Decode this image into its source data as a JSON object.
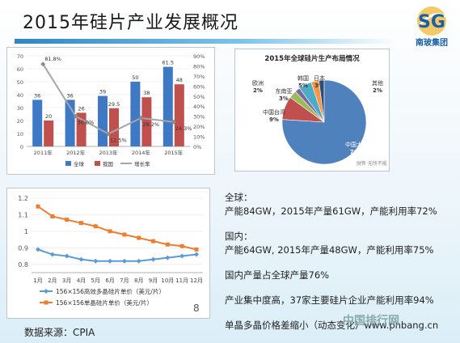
{
  "title": "2015年硅片产业发展概况",
  "logo": {
    "letters": "SG",
    "name": "南玻集团"
  },
  "chart_data": [
    {
      "type": "bar",
      "title": "",
      "categories": [
        "2011年",
        "2012年",
        "2013年",
        "2014年",
        "2015年"
      ],
      "series": [
        {
          "name": "全球",
          "values": [
            36,
            36,
            39,
            50,
            61.5
          ],
          "labels": [
            "36",
            "36",
            "39",
            "50",
            "61.5"
          ],
          "color": "#3f78c4"
        },
        {
          "name": "我国",
          "values": [
            20,
            26,
            29.5,
            38,
            48
          ],
          "labels": [
            "20",
            "26",
            "29.5",
            "38",
            "48"
          ],
          "color": "#c0504d"
        },
        {
          "name": "增长率",
          "values": [
            81.8,
            30.0,
            12.5,
            28.2,
            24.3
          ],
          "labels": [
            "81.8%",
            "30.0%",
            "12.5%",
            "28.2%",
            "24.3%"
          ],
          "color": "#a6a6a6",
          "axis": "right"
        }
      ],
      "ylim": [
        0,
        70
      ],
      "yticks": [
        "0",
        "10",
        "20",
        "30",
        "40",
        "50",
        "60",
        "70"
      ],
      "y2lim": [
        0,
        90
      ],
      "y2ticks": [
        "0%",
        "10%",
        "20%",
        "30%",
        "40%",
        "50%",
        "60%",
        "70%",
        "80%",
        "90%"
      ],
      "legend": "bottom"
    },
    {
      "type": "pie",
      "title": "2015年全球硅片生产布局情况",
      "slices": [
        {
          "name": "中国大陆",
          "value": 76,
          "label": "76%",
          "color": "#4f81bd"
        },
        {
          "name": "中国台湾",
          "value": 9,
          "label": "9%",
          "color": "#c0504d"
        },
        {
          "name": "东南亚",
          "value": 3,
          "label": "3%",
          "color": "#9bbb59"
        },
        {
          "name": "欧洲",
          "value": 2,
          "label": "2%",
          "color": "#8064a2"
        },
        {
          "name": "韩国",
          "value": 5,
          "label": "5%",
          "color": "#4bacc6"
        },
        {
          "name": "日本",
          "value": 3,
          "label": "3%",
          "color": "#f79646"
        },
        {
          "name": "其他",
          "value": 2,
          "label": "2%",
          "color": "#2c4d75"
        }
      ],
      "watermark": "财新·无所不能"
    },
    {
      "type": "line",
      "title": "",
      "categories": [
        "1月",
        "2月",
        "3月",
        "4月",
        "5月",
        "6月",
        "7月",
        "8月",
        "9月",
        "10月",
        "11月",
        "12月"
      ],
      "series": [
        {
          "name": "156×156高效多晶硅片单价（美元/片）",
          "values": [
            0.89,
            0.86,
            0.85,
            0.83,
            0.82,
            0.82,
            0.82,
            0.82,
            0.83,
            0.84,
            0.85,
            0.86
          ],
          "color": "#5b9bd5"
        },
        {
          "name": "156×156单晶硅片单价（美元/片）",
          "values": [
            1.15,
            1.09,
            1.07,
            1.05,
            1.03,
            1.0,
            0.98,
            0.96,
            0.94,
            0.92,
            0.91,
            0.89
          ],
          "color": "#ed7d31"
        }
      ],
      "ylim": [
        0.75,
        1.2
      ],
      "yticks": [
        "0.8",
        "0.9",
        "1",
        "1.1",
        "1.2"
      ],
      "legend": "bottom",
      "page_number": "8"
    }
  ],
  "stats": {
    "global_heading": "全球：",
    "global_line": "产能84GW，2015年产量61GW，产能利用率72%",
    "domestic_heading": "国内：",
    "domestic_line": "产能64GW, 2015年产量48GW，产能利用率75%",
    "share_line": "国内产量占全球产量76%",
    "concentration_line": "产业集中度高，37家主要硅片企业产能利用率94%",
    "price_gap_line": "单晶多晶价格差缩小（动态变化）www.phbang.cn"
  },
  "source": "数据来源：CPIA",
  "watermark": "中国排行网"
}
